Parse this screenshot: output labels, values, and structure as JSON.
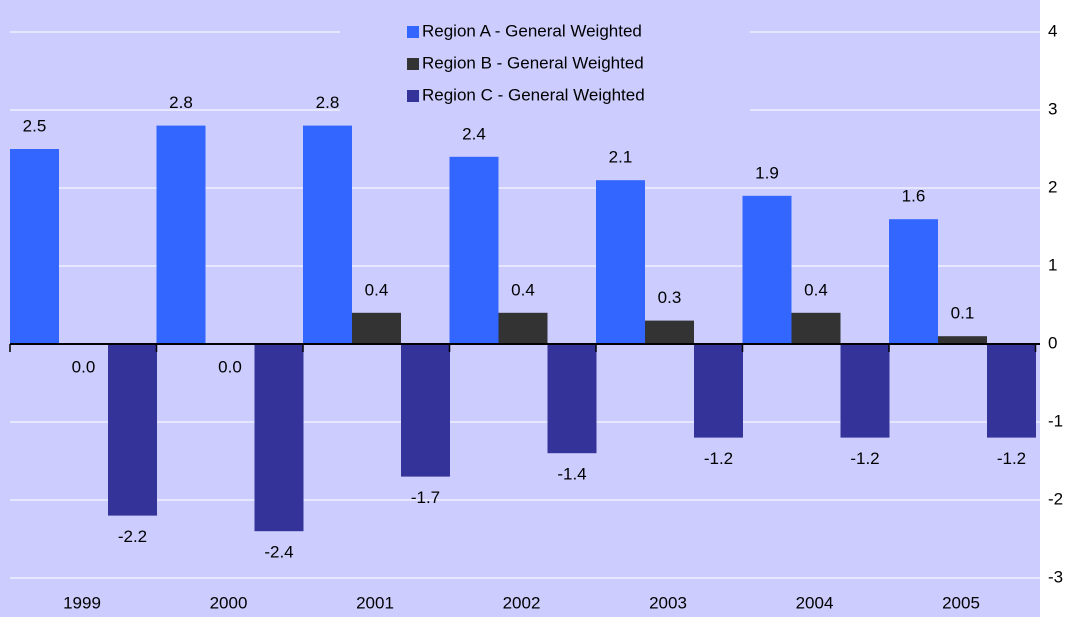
{
  "chart_data": {
    "type": "bar",
    "categories": [
      "1999",
      "2000",
      "2001",
      "2002",
      "2003",
      "2004",
      "2005"
    ],
    "series": [
      {
        "name": "Region A - General Weighted",
        "color": "#3366ff",
        "values": [
          2.5,
          2.8,
          2.8,
          2.4,
          2.1,
          1.9,
          1.6
        ]
      },
      {
        "name": "Region B - General Weighted",
        "color": "#333333",
        "values": [
          0,
          0,
          0.4,
          0.4,
          0.3,
          0.4,
          0.1
        ],
        "value_labels": [
          "0.0",
          "0.0",
          "0.4",
          "0.4",
          "0.3",
          "0.4",
          "0.1"
        ]
      },
      {
        "name": "Region C - General Weighted",
        "color": "#333399",
        "values": [
          -2.2,
          -2.4,
          -1.7,
          -1.4,
          -1.2,
          -1.2,
          -1.2
        ]
      }
    ],
    "ylim": [
      -3,
      4
    ],
    "yticks": [
      -3,
      -2,
      -1,
      0,
      1,
      2,
      3,
      4
    ],
    "grid": true,
    "legend": "top"
  }
}
